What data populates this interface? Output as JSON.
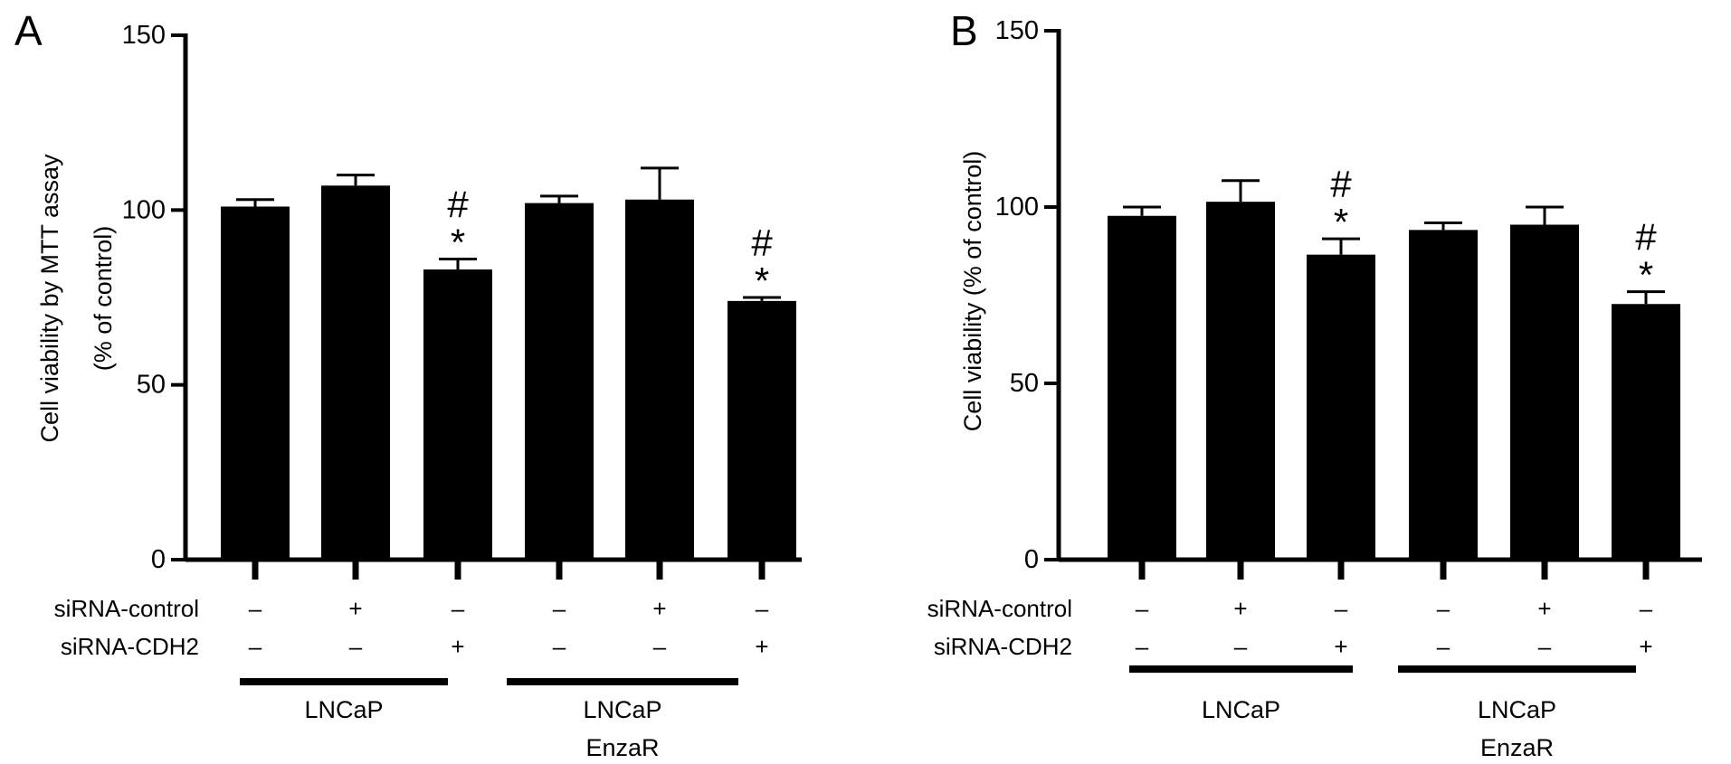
{
  "chart_data": [
    {
      "panel_label": "A",
      "type": "bar",
      "ylabel": [
        "Cell viability by MTT assay",
        "(% of control)"
      ],
      "ylim": [
        0,
        150
      ],
      "yticks": [
        0,
        50,
        100,
        150
      ],
      "colors": {
        "bar": "#000000"
      },
      "values": [
        101,
        107,
        83,
        102,
        103,
        74
      ],
      "errors": [
        2,
        3,
        3,
        2,
        9,
        1
      ],
      "annotations": [
        [],
        [],
        [
          "#",
          "*"
        ],
        [],
        [],
        [
          "#",
          "*"
        ]
      ],
      "conditions": {
        "rows": [
          {
            "label": "siRNA-control",
            "signs": [
              "–",
              "+",
              "–",
              "–",
              "+",
              "–"
            ]
          },
          {
            "label": "siRNA-CDH2",
            "signs": [
              "–",
              "–",
              "+",
              "–",
              "–",
              "+"
            ]
          }
        ]
      },
      "groups": [
        {
          "lines": [
            "LNCaP"
          ],
          "bars": [
            0,
            1,
            2
          ]
        },
        {
          "lines": [
            "LNCaP",
            "EnzaR"
          ],
          "bars": [
            3,
            4,
            5
          ]
        }
      ]
    },
    {
      "panel_label": "B",
      "type": "bar",
      "ylabel": [
        "Cell viability (% of control)"
      ],
      "ylim": [
        0,
        150
      ],
      "yticks": [
        0,
        50,
        100,
        150
      ],
      "colors": {
        "bar": "#000000"
      },
      "values": [
        97.5,
        101.5,
        86.5,
        93.5,
        95,
        72.5
      ],
      "errors": [
        2.5,
        6,
        4.5,
        2,
        5,
        3.5
      ],
      "annotations": [
        [],
        [],
        [
          "#",
          "*"
        ],
        [],
        [],
        [
          "#",
          "*"
        ]
      ],
      "conditions": {
        "rows": [
          {
            "label": "siRNA-control",
            "signs": [
              "–",
              "+",
              "–",
              "–",
              "+",
              "–"
            ]
          },
          {
            "label": "siRNA-CDH2",
            "signs": [
              "–",
              "–",
              "+",
              "–",
              "–",
              "+"
            ]
          }
        ]
      },
      "groups": [
        {
          "lines": [
            "LNCaP"
          ],
          "bars": [
            0,
            1,
            2
          ]
        },
        {
          "lines": [
            "LNCaP",
            "EnzaR"
          ],
          "bars": [
            3,
            4,
            5
          ]
        }
      ]
    }
  ]
}
